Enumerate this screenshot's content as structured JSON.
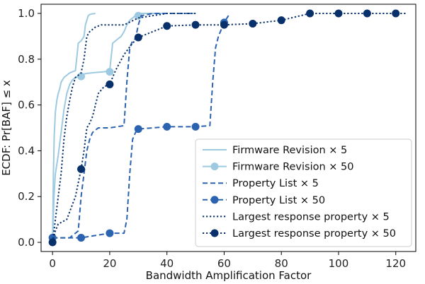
{
  "chart_data": {
    "type": "line",
    "title": "",
    "xlabel": "Bandwidth Amplification Factor",
    "ylabel": "ECDF: Pr[BAF] ≤ x",
    "xlim": [
      -4,
      127
    ],
    "ylim": [
      -0.04,
      1.04
    ],
    "xticks": [
      0,
      20,
      40,
      60,
      80,
      100,
      120
    ],
    "yticks": [
      0.0,
      0.2,
      0.4,
      0.6,
      0.8,
      1.0
    ],
    "xtick_labels": [
      "0",
      "20",
      "40",
      "60",
      "80",
      "100",
      "120"
    ],
    "ytick_labels": [
      "0.0",
      "0.2",
      "0.4",
      "0.6",
      "0.8",
      "1.0"
    ],
    "grid": false,
    "legend_position": "lower-right",
    "series": [
      {
        "name": "Firmware Revision × 5",
        "color": "#9ecae1",
        "dash": "solid",
        "marker": false,
        "x": [
          0,
          0.3,
          0.6,
          1,
          1.5,
          2,
          2.5,
          3,
          4,
          5,
          6,
          7,
          8,
          9,
          10,
          10.5,
          11,
          11.5,
          12,
          12.5,
          13,
          13.5,
          14,
          15
        ],
        "y": [
          0.0,
          0.3,
          0.47,
          0.57,
          0.62,
          0.65,
          0.67,
          0.7,
          0.72,
          0.73,
          0.74,
          0.745,
          0.75,
          0.87,
          0.88,
          0.89,
          0.9,
          0.95,
          0.97,
          0.99,
          0.995,
          0.997,
          0.998,
          1.0
        ]
      },
      {
        "name": "Firmware Revision × 50",
        "color": "#9ecae1",
        "dash": "solid",
        "marker": true,
        "x": [
          0,
          0.5,
          1,
          2,
          3,
          4,
          5,
          6,
          7,
          8,
          9,
          10,
          11,
          12,
          15,
          18,
          20,
          21,
          22,
          23,
          24,
          25,
          26,
          27,
          28,
          29,
          30,
          35,
          40
        ],
        "y": [
          0.0,
          0.2,
          0.3,
          0.38,
          0.48,
          0.58,
          0.65,
          0.69,
          0.71,
          0.72,
          0.725,
          0.73,
          0.735,
          0.738,
          0.742,
          0.745,
          0.75,
          0.87,
          0.88,
          0.89,
          0.9,
          0.92,
          0.95,
          0.97,
          0.98,
          0.99,
          1.0,
          1.0,
          1.0
        ],
        "marker_x": [
          0,
          10,
          20,
          30
        ],
        "marker_y": [
          0.02,
          0.725,
          0.745,
          0.99
        ]
      },
      {
        "name": "Property List × 5",
        "color": "#2c63b0",
        "dash": "dash",
        "marker": false,
        "x": [
          0,
          6,
          7,
          8,
          9,
          10,
          11,
          12,
          13,
          14,
          15,
          16,
          20,
          25,
          26,
          27,
          28,
          29,
          30,
          31,
          35,
          40,
          50
        ],
        "y": [
          0.02,
          0.02,
          0.03,
          0.04,
          0.05,
          0.2,
          0.3,
          0.4,
          0.45,
          0.48,
          0.49,
          0.5,
          0.5,
          0.51,
          0.7,
          0.85,
          0.88,
          0.89,
          0.95,
          0.99,
          1.0,
          1.0,
          1.0
        ]
      },
      {
        "name": "Property List × 50",
        "color": "#2c63b0",
        "dash": "dash",
        "marker": true,
        "x": [
          0,
          10,
          20,
          25,
          26,
          27,
          28,
          29,
          30,
          40,
          50,
          55,
          56,
          57,
          58,
          59,
          60,
          61,
          62
        ],
        "y": [
          0.02,
          0.02,
          0.04,
          0.04,
          0.1,
          0.3,
          0.45,
          0.48,
          0.495,
          0.505,
          0.505,
          0.51,
          0.7,
          0.85,
          0.9,
          0.93,
          0.96,
          0.98,
          1.0
        ],
        "marker_x": [
          0,
          10,
          20,
          30,
          40,
          50,
          60
        ],
        "marker_y": [
          0.02,
          0.02,
          0.04,
          0.495,
          0.505,
          0.505,
          0.96
        ]
      },
      {
        "name": "Largest response property × 5",
        "color": "#08306b",
        "dash": "dot",
        "marker": false,
        "x": [
          0,
          0.5,
          1,
          2,
          3,
          4,
          5,
          6,
          7,
          8,
          9,
          10,
          11,
          12,
          13,
          14,
          15,
          16,
          17,
          18,
          20,
          25,
          30,
          40,
          50
        ],
        "y": [
          0.0,
          0.05,
          0.1,
          0.2,
          0.3,
          0.45,
          0.55,
          0.62,
          0.68,
          0.72,
          0.73,
          0.74,
          0.8,
          0.9,
          0.92,
          0.93,
          0.94,
          0.945,
          0.95,
          0.95,
          0.95,
          0.95,
          0.98,
          1.0,
          1.0
        ]
      },
      {
        "name": "Largest response property × 50",
        "color": "#08306b",
        "dash": "dot",
        "marker": true,
        "x": [
          0,
          1,
          2,
          5,
          8,
          10,
          11,
          12,
          13,
          14,
          15,
          16,
          18,
          20,
          22,
          25,
          28,
          30,
          35,
          40,
          50,
          60,
          70,
          80,
          90,
          100,
          110,
          120,
          124
        ],
        "y": [
          0.0,
          0.05,
          0.08,
          0.1,
          0.2,
          0.32,
          0.4,
          0.5,
          0.52,
          0.55,
          0.6,
          0.65,
          0.68,
          0.69,
          0.75,
          0.82,
          0.87,
          0.895,
          0.92,
          0.945,
          0.95,
          0.95,
          0.955,
          0.97,
          1.0,
          1.0,
          1.0,
          1.0,
          1.0
        ],
        "marker_x": [
          0,
          10,
          20,
          30,
          40,
          50,
          60,
          70,
          80,
          90,
          100,
          110,
          120
        ],
        "marker_y": [
          0.0,
          0.32,
          0.69,
          0.895,
          0.945,
          0.95,
          0.95,
          0.955,
          0.97,
          1.0,
          1.0,
          1.0,
          1.0
        ]
      }
    ]
  }
}
